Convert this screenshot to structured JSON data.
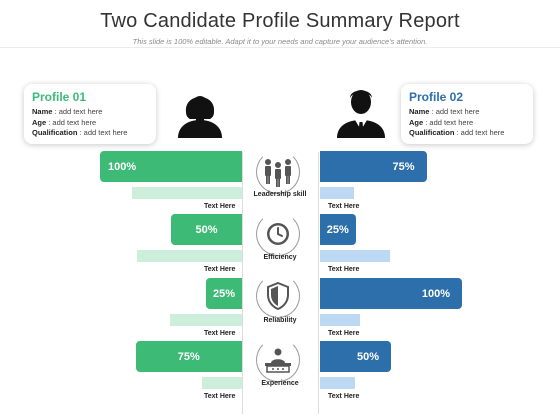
{
  "header": {
    "title": "Two Candidate Profile Summary Report",
    "subtitle": "This slide is 100% editable. Adapt it to your needs and capture your audience's attention."
  },
  "profiles": [
    {
      "title": "Profile 01",
      "name_label": "Name",
      "name_value": ": add text here",
      "age_label": "Age",
      "age_value": ": add text here",
      "qual_label": "Qualification",
      "qual_value": ": add text here",
      "color": "#3dba76",
      "avatar_icon": "female-user-icon"
    },
    {
      "title": "Profile 02",
      "name_label": "Name",
      "name_value": ": add text here",
      "age_label": "Age",
      "age_value": ": add text here",
      "qual_label": "Qualification",
      "qual_value": ": add text here",
      "color": "#2d6faa",
      "avatar_icon": "male-user-icon"
    }
  ],
  "metrics": [
    {
      "name": "Leadership skill",
      "icon": "team-icon",
      "left_label": "100%",
      "left_value": 100,
      "right_label": "75%",
      "right_value": 75,
      "left_caption": "Text Here",
      "right_caption": "Text Here"
    },
    {
      "name": "Efficiency",
      "icon": "clock-icon",
      "left_label": "50%",
      "left_value": 50,
      "right_label": "25%",
      "right_value": 25,
      "left_caption": "Text Here",
      "right_caption": "Text Here"
    },
    {
      "name": "Reliability",
      "icon": "shield-icon",
      "left_label": "25%",
      "left_value": 25,
      "right_label": "100%",
      "right_value": 100,
      "left_caption": "Text Here",
      "right_caption": "Text Here"
    },
    {
      "name": "Experience",
      "icon": "presenter-icon",
      "left_label": "75%",
      "left_value": 75,
      "right_label": "50%",
      "right_value": 50,
      "left_caption": "Text Here",
      "right_caption": "Text Here"
    }
  ],
  "colors": {
    "green": "#3dba76",
    "blue": "#2d6faa",
    "green_light": "#cdeedb",
    "blue_light": "#bcd8f3"
  }
}
